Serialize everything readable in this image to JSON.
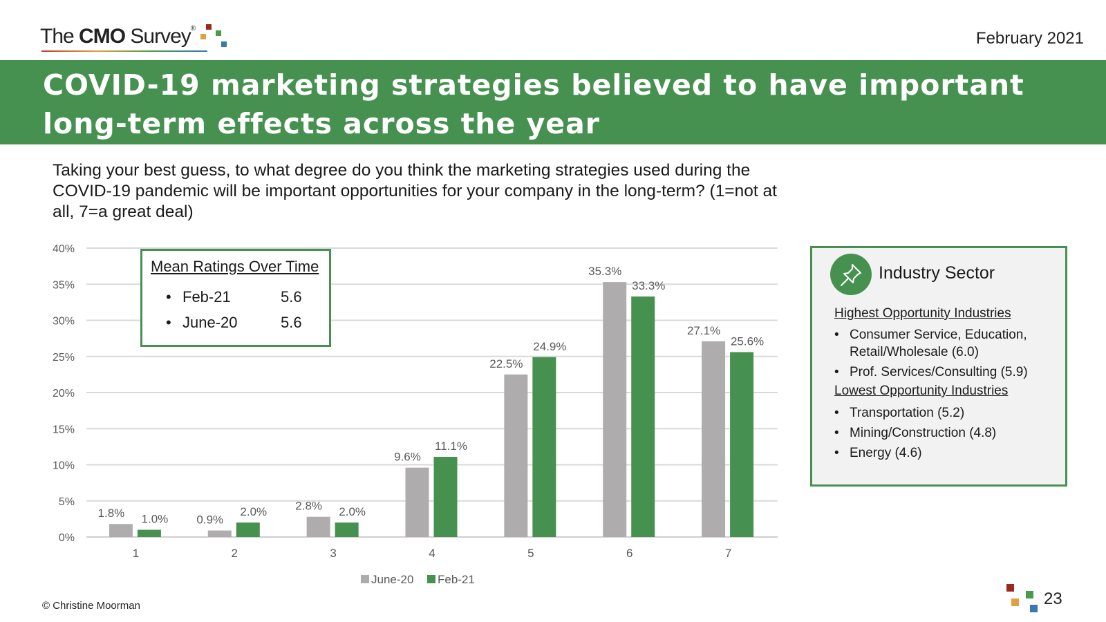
{
  "header": {
    "logo_prefix": "The",
    "logo_bold": "CMO",
    "logo_suffix": "Survey",
    "logo_reg": "®",
    "date": "February 2021"
  },
  "banner": {
    "title": "COVID-19 marketing strategies believed to have important long-term effects across the year"
  },
  "question": "Taking your best guess, to what degree do you think the marketing strategies used during the COVID-19 pandemic will be important opportunities for your company in the long-term? (1=not at all, 7=a great deal)",
  "mean_box": {
    "title": "Mean Ratings Over Time",
    "rows": [
      {
        "label": "Feb-21",
        "value": "5.6"
      },
      {
        "label": "June-20",
        "value": "5.6"
      }
    ]
  },
  "industry_box": {
    "title": "Industry Sector",
    "icon": "pushpin-icon",
    "highest_heading": "Highest Opportunity Industries",
    "highest": [
      "Consumer Service, Education, Retail/Wholesale (6.0)",
      "Prof. Services/Consulting (5.9)"
    ],
    "lowest_heading": "Lowest Opportunity Industries",
    "lowest": [
      "Transportation (5.2)",
      "Mining/Construction (4.8)",
      "Energy (4.6)"
    ]
  },
  "footer": {
    "copyright": "© Christine Moorman",
    "page": "23"
  },
  "colors": {
    "green": "#479150",
    "gray": "#aeacac",
    "logo_red": "#9b2a1e",
    "logo_orange": "#e0a040",
    "logo_green": "#4a9a4a",
    "logo_blue": "#3a78b0"
  },
  "chart_data": {
    "type": "bar",
    "categories": [
      "1",
      "2",
      "3",
      "4",
      "5",
      "6",
      "7"
    ],
    "series": [
      {
        "name": "June-20",
        "values": [
          1.8,
          0.9,
          2.8,
          9.6,
          22.5,
          35.3,
          27.1
        ],
        "labels": [
          "1.8%",
          "0.9%",
          "2.8%",
          "9.6%",
          "22.5%",
          "35.3%",
          "27.1%"
        ],
        "color": "#aeacac"
      },
      {
        "name": "Feb-21",
        "values": [
          1.0,
          2.0,
          2.0,
          11.1,
          24.9,
          33.3,
          25.6
        ],
        "labels": [
          "1.0%",
          "2.0%",
          "2.0%",
          "11.1%",
          "24.9%",
          "33.3%",
          "25.6%"
        ],
        "color": "#479150"
      }
    ],
    "yticks": [
      "0%",
      "5%",
      "10%",
      "15%",
      "20%",
      "25%",
      "30%",
      "35%",
      "40%"
    ],
    "ylim": [
      0,
      40
    ],
    "grid": true,
    "legend_position": "bottom",
    "title": "",
    "xlabel": "",
    "ylabel": ""
  }
}
